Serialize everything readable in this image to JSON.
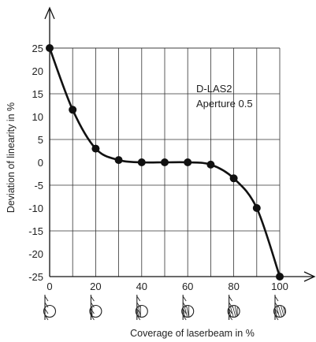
{
  "chart_data": {
    "type": "line",
    "title": "",
    "xlabel": "Coverage of laserbeam in %",
    "ylabel": "Deviation of linearity in %",
    "xlim": [
      0,
      100
    ],
    "ylim": [
      -25,
      25
    ],
    "x_ticks": [
      "0",
      "20",
      "40",
      "60",
      "80",
      "100"
    ],
    "y_ticks": [
      "25",
      "20",
      "15",
      "10",
      "5",
      "0",
      "-5",
      "-10",
      "-15",
      "-20",
      "-25"
    ],
    "grid": true,
    "annotations": [
      "D-LAS2",
      "Aperture 0.5"
    ],
    "series": [
      {
        "x": [
          0,
          10,
          20,
          30,
          40,
          50,
          60,
          70,
          80,
          90,
          100
        ],
        "y": [
          25,
          11.5,
          3,
          0.5,
          0,
          0,
          0,
          -0.5,
          -3.5,
          -10,
          -25
        ]
      }
    ],
    "coverage_icon_ticks": [
      0,
      20,
      40,
      60,
      80,
      100
    ]
  }
}
